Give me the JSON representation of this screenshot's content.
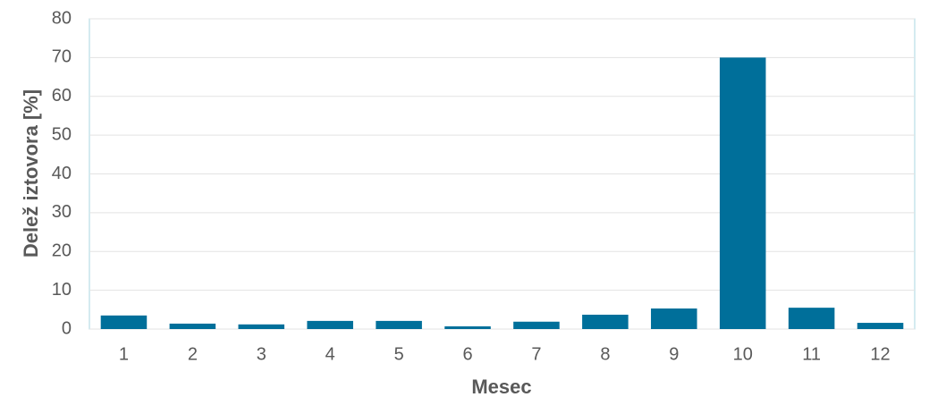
{
  "chart_data": {
    "type": "bar",
    "x_label": "Mesec",
    "y_label": "Delež iztovora [%]",
    "categories": [
      "1",
      "2",
      "3",
      "4",
      "5",
      "6",
      "7",
      "8",
      "9",
      "10",
      "11",
      "12"
    ],
    "values": [
      3.5,
      1.4,
      1.2,
      2.1,
      2.1,
      0.7,
      1.9,
      3.7,
      5.3,
      70,
      5.5,
      1.6
    ],
    "color": "#006f9a",
    "ylim": [
      0,
      80
    ],
    "yticks": [
      0,
      10,
      20,
      30,
      40,
      50,
      60,
      70,
      80
    ],
    "grid": true
  }
}
